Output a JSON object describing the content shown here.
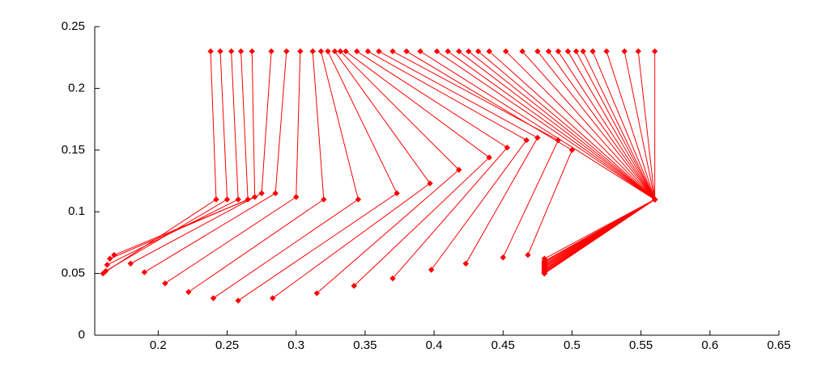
{
  "chart_data": {
    "type": "line",
    "color": "#ff0000",
    "xlim": [
      0.154,
      0.65
    ],
    "ylim": [
      0,
      0.25
    ],
    "xticks": [
      0.2,
      0.25,
      0.3,
      0.35,
      0.4,
      0.45,
      0.5,
      0.55,
      0.6,
      0.65
    ],
    "yticks": [
      0,
      0.05,
      0.1,
      0.15,
      0.2,
      0.25
    ],
    "x": [
      0.238,
      0.242,
      0.16,
      null,
      0.245,
      0.25,
      0.162,
      null,
      0.253,
      0.258,
      0.163,
      null,
      0.26,
      0.265,
      0.165,
      null,
      0.268,
      0.27,
      0.168,
      null,
      0.282,
      0.275,
      0.18,
      null,
      0.293,
      0.285,
      0.19,
      null,
      0.303,
      0.3,
      0.205,
      null,
      0.312,
      0.32,
      0.222,
      null,
      0.318,
      0.345,
      0.24,
      null,
      0.323,
      0.373,
      0.258,
      null,
      0.328,
      0.397,
      0.283,
      null,
      0.332,
      0.418,
      0.315,
      null,
      0.336,
      0.44,
      0.342,
      null,
      0.344,
      0.453,
      0.37,
      null,
      0.352,
      0.467,
      0.398,
      null,
      0.36,
      0.475,
      0.423,
      null,
      0.37,
      0.49,
      0.45,
      null,
      0.38,
      0.5,
      0.468,
      null,
      0.39,
      0.56,
      0.48,
      null,
      0.402,
      0.56,
      0.48,
      null,
      0.41,
      0.56,
      0.48,
      null,
      0.418,
      0.56,
      0.48,
      null,
      0.425,
      0.56,
      0.48,
      null,
      0.432,
      0.56,
      0.48,
      null,
      0.44,
      0.56,
      0.48,
      null,
      0.452,
      0.56,
      0.48,
      null,
      0.464,
      0.56,
      0.48,
      null,
      0.475,
      0.56,
      0.48,
      null,
      0.483,
      0.56,
      0.48,
      null,
      0.49,
      0.56,
      0.48,
      null,
      0.497,
      0.56,
      0.48,
      null,
      0.503,
      0.56,
      0.48,
      null,
      0.508,
      0.56,
      0.48,
      null,
      0.515,
      0.56,
      0.48,
      null,
      0.525,
      0.56,
      0.48,
      null,
      0.538,
      0.56,
      0.48,
      null,
      0.548,
      0.56,
      0.48,
      null,
      0.56,
      0.56,
      0.48
    ],
    "values": [
      0.23,
      0.11,
      0.05,
      null,
      0.23,
      0.11,
      0.052,
      null,
      0.23,
      0.11,
      0.057,
      null,
      0.23,
      0.11,
      0.062,
      null,
      0.23,
      0.112,
      0.065,
      null,
      0.23,
      0.115,
      0.058,
      null,
      0.23,
      0.115,
      0.051,
      null,
      0.23,
      0.112,
      0.042,
      null,
      0.23,
      0.11,
      0.035,
      null,
      0.23,
      0.11,
      0.03,
      null,
      0.23,
      0.115,
      0.028,
      null,
      0.23,
      0.123,
      0.03,
      null,
      0.23,
      0.134,
      0.034,
      null,
      0.23,
      0.144,
      0.04,
      null,
      0.23,
      0.152,
      0.046,
      null,
      0.23,
      0.158,
      0.053,
      null,
      0.23,
      0.16,
      0.058,
      null,
      0.23,
      0.158,
      0.063,
      null,
      0.23,
      0.15,
      0.065,
      null,
      0.23,
      0.11,
      0.05,
      null,
      0.23,
      0.11,
      0.052,
      null,
      0.23,
      0.11,
      0.054,
      null,
      0.23,
      0.11,
      0.056,
      null,
      0.23,
      0.11,
      0.058,
      null,
      0.23,
      0.11,
      0.06,
      null,
      0.23,
      0.11,
      0.062,
      null,
      0.23,
      0.11,
      0.052,
      null,
      0.23,
      0.11,
      0.054,
      null,
      0.23,
      0.11,
      0.056,
      null,
      0.23,
      0.11,
      0.058,
      null,
      0.23,
      0.11,
      0.06,
      null,
      0.23,
      0.11,
      0.05,
      null,
      0.23,
      0.11,
      0.053,
      null,
      0.23,
      0.11,
      0.055,
      null,
      0.23,
      0.11,
      0.057,
      null,
      0.23,
      0.11,
      0.059,
      null,
      0.23,
      0.11,
      0.051,
      null,
      0.23,
      0.11,
      0.053,
      null,
      0.23,
      0.11,
      0.05
    ]
  }
}
